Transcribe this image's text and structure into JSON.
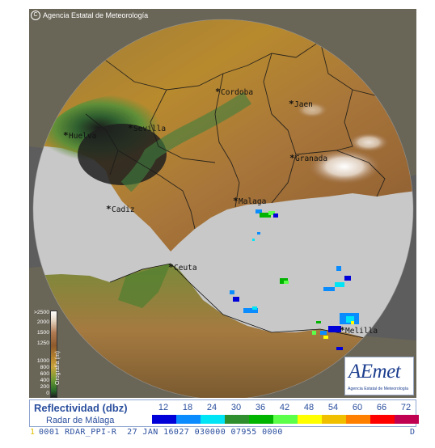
{
  "copyright": {
    "symbol": "C",
    "text": "Agencia Estatal de Meteorología"
  },
  "cities": [
    {
      "name": "Cordoba",
      "id": "cordoba"
    },
    {
      "name": "Jaen",
      "id": "jaen"
    },
    {
      "name": "Huelva",
      "id": "huelva"
    },
    {
      "name": "Sevilla",
      "id": "sevilla"
    },
    {
      "name": "Granada",
      "id": "granada"
    },
    {
      "name": "Malaga",
      "id": "malaga"
    },
    {
      "name": "Cadiz",
      "id": "cadiz"
    },
    {
      "name": "Ceuta",
      "id": "ceuta"
    },
    {
      "name": "Melilla",
      "id": "melilla"
    }
  ],
  "orography_scale": {
    "title": "Orografía (m)",
    "ticks": [
      ">2500",
      "2000",
      "1500",
      "1250",
      "1000",
      "800",
      "600",
      "400",
      "200",
      "0"
    ]
  },
  "logo": {
    "mark": "AEmet",
    "subtitle": "Agencia Estatal de Meteorología"
  },
  "legend": {
    "title": "Reflectividad (dbz)",
    "subtitle": "Radar de Málaga",
    "values": [
      "12",
      "18",
      "24",
      "30",
      "36",
      "42",
      "48",
      "54",
      "60",
      "66",
      "72"
    ],
    "colors": [
      "#0000d8",
      "#0a8cff",
      "#00e5f5",
      "#2f8f2f",
      "#00b400",
      "#5cff4a",
      "#ffff00",
      "#f0c000",
      "#ff8000",
      "#ff0000",
      "#c00050"
    ]
  },
  "status_bar": {
    "index": "1",
    "text": "0001 RDAR_PPI-R  27 JAN 16027 030000 07955 0000",
    "right": "D"
  },
  "colors": {
    "sea": "#c8c8c8",
    "outside_radar": "#5d5d5d",
    "legend_text": "#2b4f9e"
  }
}
